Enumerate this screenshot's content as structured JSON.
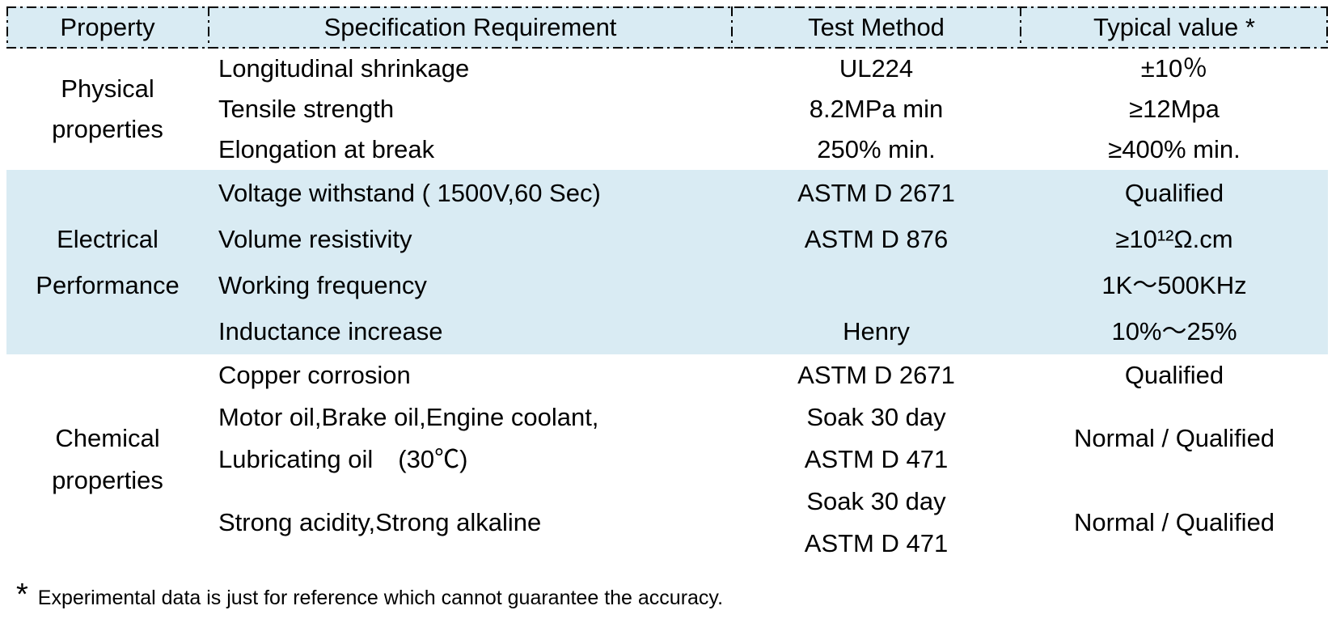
{
  "colors": {
    "header_bg": "#d9ebf3",
    "band_bg": "#d9ebf3",
    "text": "#000000"
  },
  "table": {
    "headers": [
      "Property",
      "Specification Requirement",
      "Test Method",
      "Typical value *"
    ],
    "sections": [
      {
        "id": "physical-properties",
        "property": [
          "Physical",
          "properties"
        ],
        "highlighted": false,
        "rows": [
          {
            "spec": [
              "Longitudinal shrinkage"
            ],
            "test": [
              "UL224"
            ],
            "typical": [
              "±10％"
            ]
          },
          {
            "spec": [
              "Tensile strength"
            ],
            "test": [
              "8.2MPa min"
            ],
            "typical": [
              "≥12Mpa"
            ]
          },
          {
            "spec": [
              "Elongation at break"
            ],
            "test": [
              "250% min."
            ],
            "typical": [
              "≥400% min."
            ]
          }
        ]
      },
      {
        "id": "electrical-performance",
        "property": [
          "Electrical",
          "Performance"
        ],
        "highlighted": true,
        "rows": [
          {
            "spec": [
              "Voltage withstand ( 1500V,60 Sec)"
            ],
            "test": [
              "ASTM D 2671"
            ],
            "typical": [
              "Qualified"
            ]
          },
          {
            "spec": [
              "Volume resistivity"
            ],
            "test": [
              "ASTM D 876"
            ],
            "typical": [
              "≥10¹²Ω.cm"
            ]
          },
          {
            "spec": [
              "Working frequency"
            ],
            "test": [
              ""
            ],
            "typical": [
              "1K～500KHz"
            ]
          },
          {
            "spec": [
              "Inductance increase"
            ],
            "test": [
              "Henry"
            ],
            "typical": [
              "10%～25%"
            ]
          }
        ]
      },
      {
        "id": "chemical-properties",
        "property": [
          "Chemical",
          "properties"
        ],
        "highlighted": false,
        "rows": [
          {
            "spec": [
              "Copper corrosion"
            ],
            "test": [
              "ASTM D 2671"
            ],
            "typical": [
              "Qualified"
            ]
          },
          {
            "spec": [
              "Motor oil,Brake oil,Engine coolant,",
              "Lubricating oil　(30℃)"
            ],
            "test": [
              "Soak 30 day",
              "ASTM D 471"
            ],
            "typical": [
              "Normal / Qualified"
            ]
          },
          {
            "spec": [
              "Strong acidity,Strong alkaline"
            ],
            "test": [
              "Soak 30 day",
              "ASTM D 471"
            ],
            "typical": [
              "Normal / Qualified"
            ]
          }
        ]
      }
    ]
  },
  "footnote": {
    "symbol": "*",
    "text": "Experimental data is just for reference which cannot guarantee the accuracy."
  }
}
